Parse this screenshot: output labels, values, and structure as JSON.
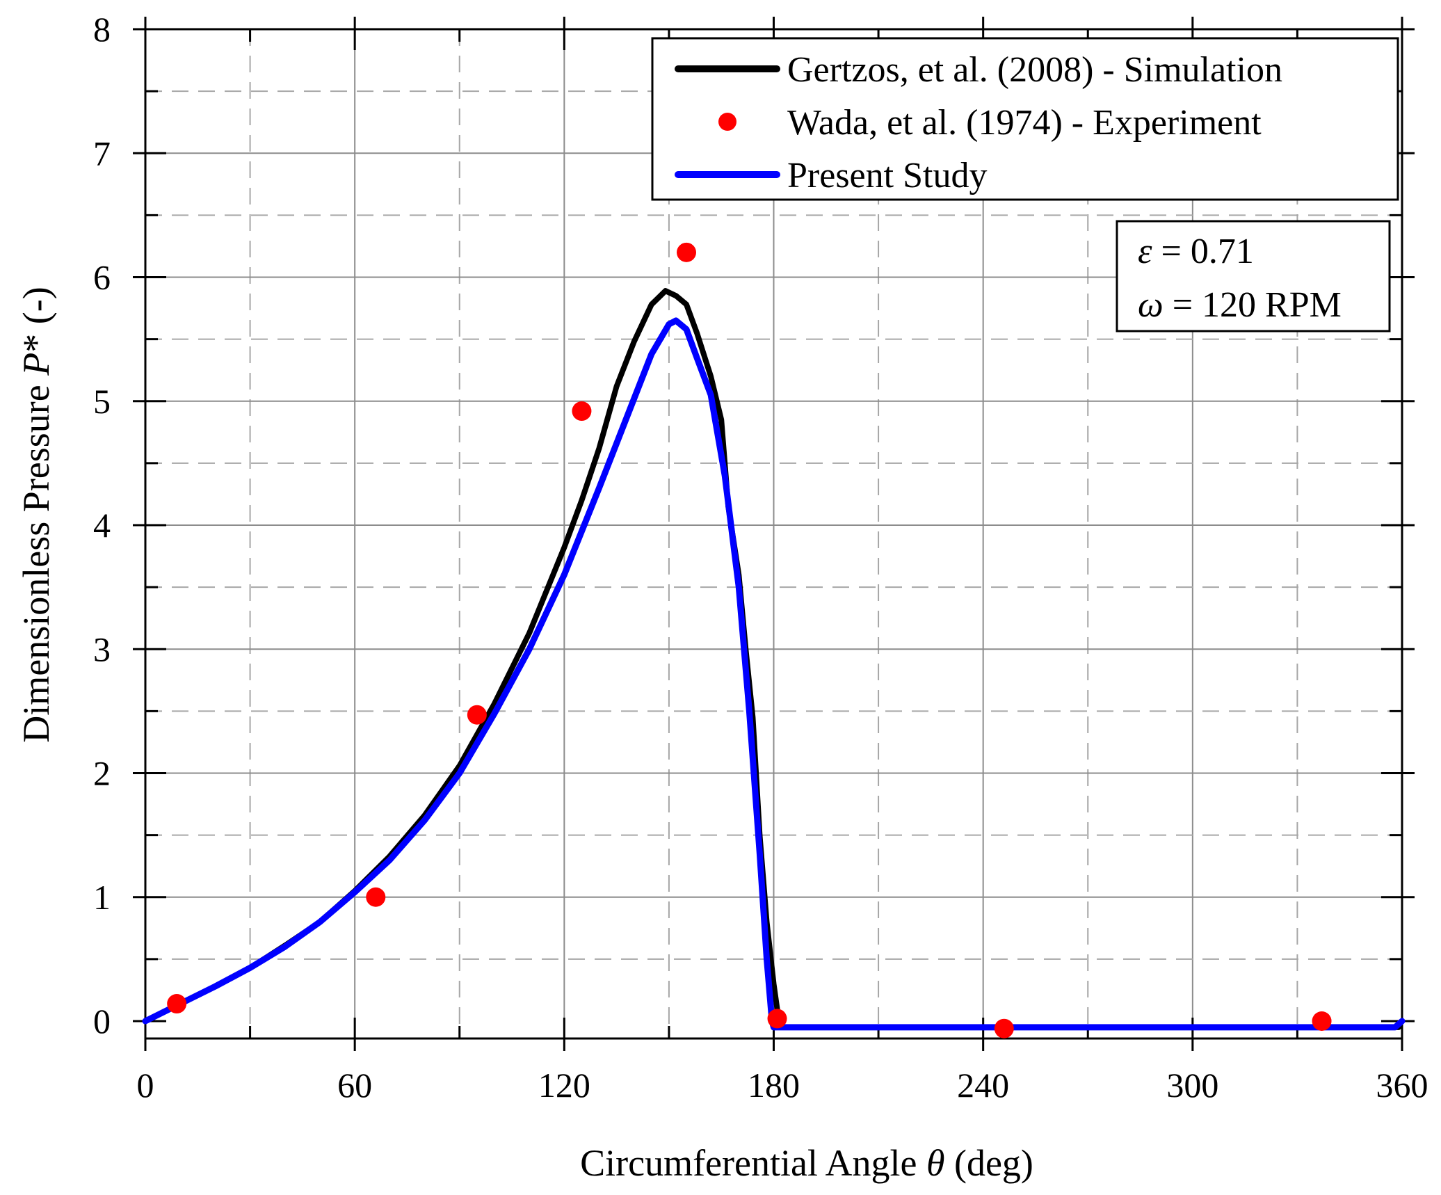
{
  "chart_data": {
    "type": "line",
    "title": "",
    "xlabel": "Circumferential Angle θ (deg)",
    "xlabel_parts": {
      "pre": "Circumferential Angle ",
      "sym": "θ",
      "post": " (deg)"
    },
    "ylabel": "Dimensionless Pressure P* (-)",
    "ylabel_parts": {
      "pre": "Dimensionless Pressure ",
      "sym": "P",
      "post": "* (-)"
    },
    "xlim": [
      0,
      360
    ],
    "ylim": [
      -0.15,
      8
    ],
    "xticks": [
      0,
      60,
      120,
      180,
      240,
      300,
      360
    ],
    "yticks": [
      0,
      1,
      2,
      3,
      4,
      5,
      6,
      7,
      8
    ],
    "grid": true,
    "legend_position": "top-right",
    "series": [
      {
        "name": "Gertzos, et al. (2008) - Simulation",
        "kind": "line",
        "color": "#000000",
        "points": [
          [
            0,
            0
          ],
          [
            10,
            0.14
          ],
          [
            20,
            0.28
          ],
          [
            30,
            0.43
          ],
          [
            40,
            0.61
          ],
          [
            50,
            0.8
          ],
          [
            60,
            1.05
          ],
          [
            70,
            1.33
          ],
          [
            80,
            1.66
          ],
          [
            90,
            2.06
          ],
          [
            100,
            2.56
          ],
          [
            110,
            3.13
          ],
          [
            120,
            3.82
          ],
          [
            125,
            4.2
          ],
          [
            130,
            4.62
          ],
          [
            135,
            5.12
          ],
          [
            140,
            5.48
          ],
          [
            145,
            5.78
          ],
          [
            149,
            5.89
          ],
          [
            152,
            5.85
          ],
          [
            155,
            5.78
          ],
          [
            158,
            5.55
          ],
          [
            162,
            5.2
          ],
          [
            165,
            4.85
          ],
          [
            167,
            4.15
          ],
          [
            170,
            3.6
          ],
          [
            172,
            3.0
          ],
          [
            174,
            2.45
          ],
          [
            176,
            1.5
          ],
          [
            178,
            0.8
          ],
          [
            180,
            0.3
          ],
          [
            181,
            0.1
          ],
          [
            181.5,
            -0.05
          ],
          [
            359,
            -0.05
          ]
        ]
      },
      {
        "name": "Wada, et al. (1974) - Experiment",
        "kind": "scatter",
        "color": "#ff0000",
        "points": [
          [
            9,
            0.14
          ],
          [
            66,
            1.0
          ],
          [
            95,
            2.47
          ],
          [
            125,
            4.92
          ],
          [
            155,
            6.2
          ],
          [
            181,
            0.02
          ],
          [
            246,
            -0.06
          ],
          [
            337,
            0.0
          ]
        ]
      },
      {
        "name": "Present Study",
        "kind": "line",
        "color": "#0000ff",
        "points": [
          [
            0,
            0
          ],
          [
            10,
            0.14
          ],
          [
            20,
            0.28
          ],
          [
            30,
            0.43
          ],
          [
            40,
            0.6
          ],
          [
            50,
            0.8
          ],
          [
            60,
            1.04
          ],
          [
            70,
            1.3
          ],
          [
            80,
            1.62
          ],
          [
            90,
            2.0
          ],
          [
            100,
            2.48
          ],
          [
            110,
            3.0
          ],
          [
            120,
            3.6
          ],
          [
            130,
            4.3
          ],
          [
            140,
            5.02
          ],
          [
            145,
            5.38
          ],
          [
            150,
            5.62
          ],
          [
            152,
            5.65
          ],
          [
            155,
            5.58
          ],
          [
            158,
            5.35
          ],
          [
            162,
            5.05
          ],
          [
            166,
            4.4
          ],
          [
            170,
            3.5
          ],
          [
            173,
            2.5
          ],
          [
            176,
            1.35
          ],
          [
            178,
            0.5
          ],
          [
            179.5,
            0.0
          ],
          [
            180,
            -0.05
          ],
          [
            358,
            -0.05
          ],
          [
            360,
            0.0
          ]
        ]
      }
    ],
    "annotations": [
      {
        "sym": "ε",
        "text": " = 0.71"
      },
      {
        "sym": "ω",
        "text": " = 120 RPM"
      }
    ]
  }
}
